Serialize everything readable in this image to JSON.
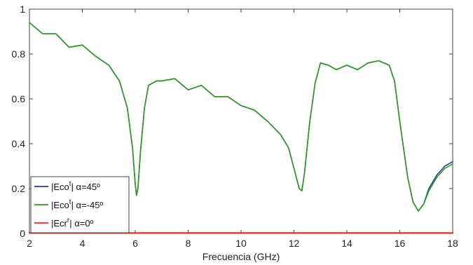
{
  "chart_data": {
    "type": "line",
    "title": "",
    "xlabel": "Frecuencia (GHz)",
    "ylabel": "",
    "xlim": [
      2,
      18
    ],
    "ylim": [
      0,
      1
    ],
    "xticks": [
      2,
      4,
      6,
      8,
      10,
      12,
      14,
      16,
      18
    ],
    "yticks": [
      0,
      0.2,
      0.4,
      0.6,
      0.8,
      1
    ],
    "ytick_labels": [
      "0",
      "0.2",
      "0.4",
      "0.6",
      "0.8",
      "1"
    ],
    "grid": false,
    "legend_position": "bottom-left",
    "series": [
      {
        "name": "|Eco^t| α=45º",
        "legend_base": "|Eco",
        "legend_sup": "t",
        "legend_rest": "| α=45º",
        "color": "#1f3fa8",
        "x": [
          2.0,
          2.5,
          3.0,
          3.5,
          4.0,
          4.5,
          5.0,
          5.4,
          5.7,
          5.9,
          6.0,
          6.05,
          6.1,
          6.2,
          6.35,
          6.5,
          6.8,
          7.0,
          7.5,
          8.0,
          8.5,
          9.0,
          9.5,
          10.0,
          10.5,
          11.0,
          11.5,
          11.8,
          12.0,
          12.2,
          12.3,
          12.4,
          12.6,
          12.8,
          13.0,
          13.3,
          13.6,
          14.0,
          14.4,
          14.8,
          15.2,
          15.6,
          15.8,
          16.0,
          16.3,
          16.5,
          16.7,
          16.9,
          17.1,
          17.4,
          17.7,
          18.0
        ],
        "values": [
          0.94,
          0.89,
          0.89,
          0.83,
          0.84,
          0.79,
          0.75,
          0.68,
          0.56,
          0.38,
          0.22,
          0.17,
          0.2,
          0.37,
          0.56,
          0.66,
          0.68,
          0.68,
          0.69,
          0.64,
          0.66,
          0.61,
          0.61,
          0.57,
          0.55,
          0.5,
          0.44,
          0.38,
          0.29,
          0.2,
          0.19,
          0.27,
          0.5,
          0.67,
          0.76,
          0.75,
          0.73,
          0.75,
          0.73,
          0.76,
          0.77,
          0.75,
          0.68,
          0.5,
          0.25,
          0.14,
          0.1,
          0.13,
          0.2,
          0.26,
          0.3,
          0.32
        ]
      },
      {
        "name": "|Eco^t| α=-45º",
        "legend_base": "|Eco",
        "legend_sup": "t",
        "legend_rest": "| α=-45º",
        "color": "#2e9a1e",
        "x": [
          2.0,
          2.5,
          3.0,
          3.5,
          4.0,
          4.5,
          5.0,
          5.4,
          5.7,
          5.9,
          6.0,
          6.05,
          6.1,
          6.2,
          6.35,
          6.5,
          6.8,
          7.0,
          7.5,
          8.0,
          8.5,
          9.0,
          9.5,
          10.0,
          10.5,
          11.0,
          11.5,
          11.8,
          12.0,
          12.2,
          12.3,
          12.4,
          12.6,
          12.8,
          13.0,
          13.3,
          13.6,
          14.0,
          14.4,
          14.8,
          15.2,
          15.6,
          15.8,
          16.0,
          16.3,
          16.5,
          16.7,
          16.9,
          17.1,
          17.4,
          17.7,
          18.0
        ],
        "values": [
          0.94,
          0.89,
          0.89,
          0.83,
          0.84,
          0.79,
          0.75,
          0.68,
          0.56,
          0.38,
          0.22,
          0.17,
          0.2,
          0.37,
          0.56,
          0.66,
          0.68,
          0.68,
          0.69,
          0.64,
          0.66,
          0.61,
          0.61,
          0.57,
          0.55,
          0.5,
          0.44,
          0.38,
          0.29,
          0.2,
          0.19,
          0.27,
          0.5,
          0.67,
          0.76,
          0.75,
          0.73,
          0.75,
          0.73,
          0.76,
          0.77,
          0.75,
          0.68,
          0.5,
          0.25,
          0.14,
          0.1,
          0.13,
          0.19,
          0.25,
          0.29,
          0.31
        ]
      },
      {
        "name": "|Ecr^r| α=0º",
        "legend_base": "|Ecr",
        "legend_sup": "r",
        "legend_rest": "| α=0º",
        "color": "#e0301a",
        "x": [
          2.0,
          18.0
        ],
        "values": [
          0.002,
          0.002
        ]
      }
    ]
  }
}
